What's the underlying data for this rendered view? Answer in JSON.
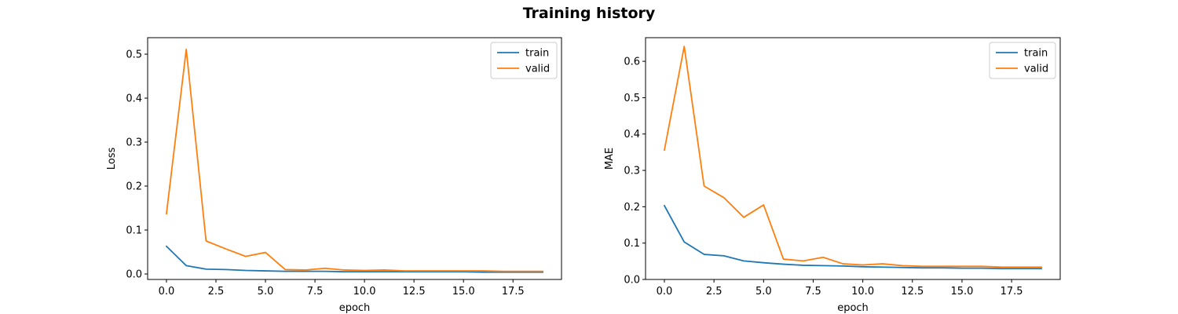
{
  "figure": {
    "title": "Training history"
  },
  "chart_data": [
    {
      "type": "line",
      "xlabel": "epoch",
      "ylabel": "Loss",
      "xlim": [
        -0.95,
        19.95
      ],
      "ylim": [
        -0.0125,
        0.5375
      ],
      "xticks": [
        0.0,
        2.5,
        5.0,
        7.5,
        10.0,
        12.5,
        15.0,
        17.5
      ],
      "xtick_labels": [
        "0.0",
        "2.5",
        "5.0",
        "7.5",
        "10.0",
        "12.5",
        "15.0",
        "17.5"
      ],
      "yticks": [
        0.0,
        0.1,
        0.2,
        0.3,
        0.4,
        0.5
      ],
      "ytick_labels": [
        "0.0",
        "0.1",
        "0.2",
        "0.3",
        "0.4",
        "0.5"
      ],
      "legend": "upper-right",
      "grid": false,
      "x": [
        0,
        1,
        2,
        3,
        4,
        5,
        6,
        7,
        8,
        9,
        10,
        11,
        12,
        13,
        14,
        15,
        16,
        17,
        18,
        19
      ],
      "series": [
        {
          "name": "train",
          "color": "#1f77b4",
          "values": [
            0.063,
            0.019,
            0.011,
            0.01,
            0.008,
            0.007,
            0.006,
            0.006,
            0.006,
            0.005,
            0.005,
            0.005,
            0.005,
            0.005,
            0.005,
            0.005,
            0.004,
            0.004,
            0.004,
            0.004
          ]
        },
        {
          "name": "valid",
          "color": "#ff7f0e",
          "values": [
            0.137,
            0.511,
            0.075,
            0.057,
            0.04,
            0.049,
            0.01,
            0.009,
            0.013,
            0.009,
            0.008,
            0.009,
            0.007,
            0.007,
            0.007,
            0.007,
            0.007,
            0.006,
            0.006,
            0.006
          ]
        }
      ]
    },
    {
      "type": "line",
      "xlabel": "epoch",
      "ylabel": "MAE",
      "xlim": [
        -0.95,
        19.95
      ],
      "ylim": [
        0.0,
        0.665
      ],
      "xticks": [
        0.0,
        2.5,
        5.0,
        7.5,
        10.0,
        12.5,
        15.0,
        17.5
      ],
      "xtick_labels": [
        "0.0",
        "2.5",
        "5.0",
        "7.5",
        "10.0",
        "12.5",
        "15.0",
        "17.5"
      ],
      "yticks": [
        0.0,
        0.1,
        0.2,
        0.3,
        0.4,
        0.5,
        0.6
      ],
      "ytick_labels": [
        "0.0",
        "0.1",
        "0.2",
        "0.3",
        "0.4",
        "0.5",
        "0.6"
      ],
      "legend": "upper-right",
      "grid": false,
      "x": [
        0,
        1,
        2,
        3,
        4,
        5,
        6,
        7,
        8,
        9,
        10,
        11,
        12,
        13,
        14,
        15,
        16,
        17,
        18,
        19
      ],
      "series": [
        {
          "name": "train",
          "color": "#1f77b4",
          "values": [
            0.203,
            0.103,
            0.069,
            0.065,
            0.051,
            0.046,
            0.042,
            0.039,
            0.038,
            0.037,
            0.035,
            0.034,
            0.033,
            0.032,
            0.032,
            0.031,
            0.031,
            0.03,
            0.03,
            0.03
          ]
        },
        {
          "name": "valid",
          "color": "#ff7f0e",
          "values": [
            0.356,
            0.641,
            0.257,
            0.225,
            0.171,
            0.205,
            0.056,
            0.051,
            0.061,
            0.043,
            0.04,
            0.043,
            0.038,
            0.036,
            0.036,
            0.036,
            0.036,
            0.034,
            0.034,
            0.034
          ]
        }
      ]
    }
  ]
}
